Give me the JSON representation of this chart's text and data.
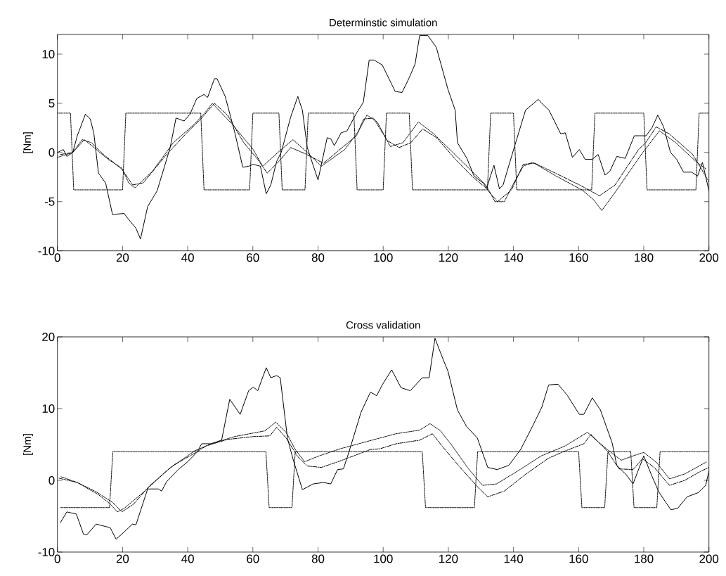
{
  "chart_data": [
    {
      "type": "line",
      "title": "Determinstic simulation",
      "ylabel": "[Nm]",
      "xlim": [
        0,
        200
      ],
      "xticks": [
        0,
        20,
        40,
        60,
        80,
        100,
        120,
        140,
        160,
        180,
        200
      ],
      "ylim": [
        -10,
        12
      ],
      "yticks": [
        -10,
        -5,
        0,
        5,
        10
      ],
      "series": [
        {
          "color": "#000000",
          "line_style": "solid",
          "x": [
            0,
            1.8,
            2.9,
            4.7,
            6.1,
            8.6,
            10.1,
            11.2,
            12.6,
            14.8,
            16.9,
            20.5,
            21.6,
            24.1,
            25.5,
            27.7,
            30.6,
            32.8,
            34.6,
            36.4,
            38.9,
            40.7,
            42.8,
            45,
            46.1,
            48.2,
            49,
            51.5,
            54.4,
            56.9,
            58.7,
            60.1,
            62.3,
            64.1,
            65.5,
            67.3,
            68.7,
            71.6,
            73.8,
            75.2,
            76.7,
            80,
            82.8,
            83.9,
            85,
            87.1,
            88.9,
            91.8,
            93.9,
            95.7,
            97.2,
            99.7,
            103.7,
            105.8,
            108,
            109.8,
            111.2,
            113.7,
            116.3,
            119.9,
            122.1,
            122.8,
            125.7,
            127.9,
            130.7,
            131.8,
            134,
            135.7,
            136.8,
            140.4,
            143.7,
            147.6,
            148.7,
            150.9,
            154.5,
            155.9,
            158.1,
            160.2,
            162,
            164.2,
            166,
            168.1,
            169.6,
            171.7,
            174.3,
            177.1,
            180.7,
            182.5,
            184.3,
            186.1,
            188.2,
            190.1,
            192.2,
            194.7,
            196.5,
            198,
            200
          ],
          "values": [
            0,
            0.3,
            -0.4,
            0,
            1.7,
            3.9,
            3.4,
            1.9,
            -2.1,
            -3.1,
            -6.3,
            -6.2,
            -6.7,
            -7.7,
            -8.8,
            -5.5,
            -3.9,
            -1.5,
            0.5,
            3.5,
            3.2,
            3.9,
            5.5,
            5.9,
            5.6,
            7.5,
            7.5,
            5.7,
            2.1,
            -1.5,
            -1.4,
            -1.2,
            -1.4,
            -4.2,
            -3.3,
            -0.9,
            0,
            3.6,
            5.7,
            4.3,
            0.5,
            -2.8,
            1.5,
            1.4,
            0.7,
            2,
            2.2,
            4,
            5.1,
            9.4,
            9.4,
            8.9,
            6.2,
            6.1,
            7.6,
            9,
            11.9,
            11.9,
            10.7,
            6.4,
            4.3,
            1,
            -0.6,
            -2.4,
            -3.1,
            -3.6,
            -1.3,
            -3.7,
            -3.3,
            0.7,
            4.3,
            5.4,
            5,
            4.3,
            1.9,
            2,
            -0.5,
            0.3,
            -0.7,
            -0.7,
            -0.2,
            -2.3,
            -1.9,
            -0.4,
            -0.6,
            1.7,
            1.7,
            2.5,
            3.8,
            2.6,
            0,
            -0.7,
            -2,
            -2,
            -2.4,
            -1,
            -3.9
          ]
        },
        {
          "color": "#000000",
          "line_style": "dotted",
          "x": [
            0,
            4,
            5,
            20,
            21,
            44,
            45,
            59,
            60,
            68,
            69,
            76,
            77,
            91,
            92,
            100,
            101,
            108,
            109,
            132,
            133,
            140,
            141,
            164,
            165,
            180,
            181,
            196,
            197,
            200
          ],
          "values": [
            4,
            4,
            -3.8,
            -3.8,
            4,
            4,
            -3.8,
            -3.8,
            4,
            4,
            -3.8,
            -3.8,
            4,
            4,
            -3.8,
            -3.8,
            4,
            4,
            -3.8,
            -3.8,
            4,
            4,
            -3.8,
            -3.8,
            4,
            4,
            -3.8,
            -3.8,
            4,
            4
          ]
        },
        {
          "color": "#000000",
          "line_style": "dashdot",
          "x": [
            1,
            4.7,
            7.6,
            10.4,
            14.1,
            19.8,
            23.1,
            26.3,
            33.5,
            40,
            44.3,
            48.2,
            52.2,
            57.2,
            61.5,
            64.4,
            68,
            71.6,
            75.9,
            81.7,
            87.4,
            91.8,
            94,
            97,
            101.3,
            104.9,
            108.5,
            112.1,
            116.4,
            122.2,
            127.2,
            131.5,
            135.1,
            139.4,
            143,
            146.6,
            151.6,
            160.3,
            166.4,
            171.2,
            178.4,
            180.6,
            183.8,
            187.8,
            195,
            197.2,
            200
          ],
          "values": [
            -0.2,
            0,
            1.3,
            1,
            -0.2,
            -1.7,
            -3.3,
            -3.1,
            -0.2,
            2.1,
            3.5,
            5,
            3.8,
            1,
            -0.7,
            -2.1,
            -0.9,
            0.5,
            -0.1,
            -1.1,
            0.5,
            1.7,
            3.4,
            3.5,
            1.2,
            0.5,
            1,
            2.4,
            1.5,
            -0.7,
            -2.4,
            -3.6,
            -5,
            -3.8,
            -1.2,
            -1.1,
            -1.9,
            -3.3,
            -4.4,
            -3.3,
            0.3,
            1,
            2.6,
            1.9,
            -0.2,
            -1.4,
            -3
          ]
        },
        {
          "color": "#000000",
          "line_style": "dotted",
          "x": [
            0,
            4.7,
            8.3,
            15.6,
            19.8,
            21.9,
            23.8,
            29.2,
            35.6,
            42.1,
            45.7,
            47.5,
            53.6,
            60.1,
            63,
            68.7,
            72.3,
            76.7,
            81,
            88.2,
            92.5,
            95,
            98.2,
            102.2,
            106.1,
            110.8,
            115.5,
            121.4,
            127.2,
            131.5,
            134.3,
            137.2,
            140.1,
            143,
            145.9,
            153.1,
            161,
            164.6,
            167.1,
            171.1,
            179.7,
            184.8,
            189.8,
            196.3,
            199.2
          ],
          "values": [
            -0.5,
            0,
            1.3,
            -0.7,
            -1.6,
            -3.1,
            -3.6,
            -1.9,
            1,
            2.9,
            4.2,
            5,
            2.9,
            0.3,
            -1.4,
            0.3,
            1.3,
            0,
            -1.4,
            0.3,
            2.2,
            3.8,
            3.1,
            0.6,
            1,
            3.1,
            1.9,
            0,
            -1.9,
            -3.3,
            -5,
            -5,
            -3.1,
            -1.4,
            -1,
            -2.4,
            -3.8,
            -4.8,
            -5.9,
            -4.1,
            0,
            2.2,
            1,
            -1,
            -1.7
          ]
        }
      ]
    },
    {
      "type": "line",
      "title": "Cross validation",
      "ylabel": "[Nm]",
      "xlim": [
        0,
        200
      ],
      "xticks": [
        0,
        20,
        40,
        60,
        80,
        100,
        120,
        140,
        160,
        180,
        200
      ],
      "ylim": [
        -10,
        20
      ],
      "yticks": [
        -10,
        0,
        10,
        20
      ],
      "series": [
        {
          "color": "#000000",
          "line_style": "solid",
          "x": [
            0.9,
            2.9,
            5.8,
            8,
            9,
            11.9,
            16.2,
            18,
            20.5,
            23,
            24.1,
            27.7,
            31,
            32,
            33.5,
            37.1,
            40,
            42.8,
            44.3,
            47.2,
            50.4,
            52.9,
            56.1,
            58.7,
            60.1,
            61.5,
            64.1,
            65.5,
            67.3,
            68.4,
            70.6,
            72.3,
            75.2,
            78.5,
            81.7,
            83.9,
            86,
            87.8,
            89.6,
            93.2,
            96.1,
            98,
            99.7,
            102.6,
            105.5,
            108.3,
            112,
            114.1,
            115.9,
            118.1,
            119.9,
            122.8,
            125.6,
            128.9,
            132.1,
            135,
            138.6,
            142.2,
            145.8,
            148.7,
            150.8,
            153.7,
            156.6,
            160.2,
            161.6,
            164.2,
            166.7,
            170.3,
            171.7,
            174.6,
            176.7,
            180,
            182.5,
            184.6,
            188.3,
            190.4,
            193.3,
            196.8,
            199,
            200
          ],
          "values": [
            -5.9,
            -4.4,
            -4.7,
            -7.5,
            -7.6,
            -6.1,
            -6.6,
            -8.2,
            -7.2,
            -6.1,
            -6.2,
            -1.2,
            -1.2,
            -1.5,
            -0.2,
            1.5,
            2.6,
            3.9,
            5.1,
            5.1,
            5.6,
            11.3,
            9.2,
            12.5,
            13,
            12.5,
            15.7,
            14.3,
            14.6,
            14.3,
            5.9,
            3,
            -1.3,
            -0.5,
            -0.3,
            -0.5,
            1.5,
            1.6,
            4.1,
            9.5,
            12.3,
            11.8,
            13.3,
            15.4,
            12.9,
            12.5,
            14.3,
            14.3,
            19.8,
            17.2,
            15.2,
            9.8,
            7.5,
            5.9,
            1.8,
            1.5,
            2.1,
            4.3,
            7.5,
            10.2,
            13.3,
            13.4,
            11.8,
            9.2,
            9.2,
            11.5,
            9.8,
            5.2,
            2.1,
            0.8,
            -0.5,
            3.4,
            0.6,
            -1.6,
            -4.1,
            -3.9,
            -2.3,
            -1.7,
            -0.7,
            1.3
          ]
        },
        {
          "color": "#000000",
          "line_style": "dotted",
          "x": [
            1,
            16,
            17,
            64,
            65,
            72,
            73,
            112,
            113,
            128,
            129,
            160,
            161,
            168,
            169,
            176,
            177,
            184,
            185,
            200
          ],
          "values": [
            -3.8,
            -3.8,
            4,
            4,
            -3.8,
            -3.8,
            4,
            4,
            -3.8,
            -3.8,
            4,
            4,
            -3.8,
            -3.8,
            4,
            4,
            -3.8,
            -3.8,
            4,
            4
          ]
        },
        {
          "color": "#000000",
          "line_style": "dashdot",
          "x": [
            1.1,
            6.1,
            11.9,
            17,
            19.8,
            23.4,
            28.4,
            35.6,
            41.4,
            45.7,
            52.2,
            60.1,
            65.2,
            67.3,
            70.2,
            73.8,
            76.7,
            81,
            87.4,
            96.1,
            99,
            104,
            111.2,
            115.1,
            118.4,
            124.2,
            129.2,
            132.1,
            137.2,
            143.6,
            150.8,
            155.9,
            161.6,
            163.8,
            165.9,
            168.8,
            172.4,
            176.7,
            179.6,
            183.2,
            187.9,
            192.6,
            197.6,
            200
          ],
          "values": [
            0.5,
            -0.3,
            -1.6,
            -3.1,
            -4.4,
            -3.3,
            -0.7,
            2.1,
            3.6,
            4.8,
            5.7,
            6.1,
            6.2,
            7.4,
            5.9,
            3.3,
            2,
            1.8,
            2.8,
            4.3,
            4.4,
            5.1,
            5.6,
            6.5,
            4.6,
            1.5,
            -1,
            -2.3,
            -1.5,
            0.8,
            3.1,
            4.1,
            5.1,
            6.4,
            5.4,
            4.1,
            1.6,
            1.5,
            3,
            1.8,
            -0.7,
            0,
            1.3,
            1.8
          ]
        },
        {
          "color": "#000000",
          "line_style": "dotted",
          "x": [
            0.5,
            6.1,
            12.6,
            16.2,
            18.4,
            20.5,
            26.3,
            34.2,
            42.1,
            47.2,
            54.4,
            63.7,
            67,
            70.2,
            73,
            75.9,
            80.3,
            86.8,
            92.5,
            99,
            104,
            111.2,
            114.4,
            117.6,
            121.2,
            126.2,
            130.5,
            134.8,
            141.3,
            148.5,
            155.9,
            162.7,
            165.9,
            168.8,
            173.1,
            176,
            180,
            183.9,
            187.9,
            192.6,
            199.4
          ],
          "values": [
            0.3,
            -0.3,
            -2,
            -3.3,
            -4.4,
            -3.9,
            -1.7,
            1.6,
            4.1,
            5.1,
            6.1,
            6.9,
            8.1,
            6.7,
            4.3,
            2.6,
            3.4,
            4.4,
            5.1,
            5.9,
            6.5,
            7,
            7.9,
            6.9,
            4.8,
            1.6,
            -0.7,
            -0.5,
            1.3,
            3.4,
            4.8,
            6.7,
            5.4,
            4.3,
            2.8,
            3.3,
            3.9,
            2.5,
            0.2,
            0.9,
            2.6
          ]
        }
      ]
    }
  ]
}
